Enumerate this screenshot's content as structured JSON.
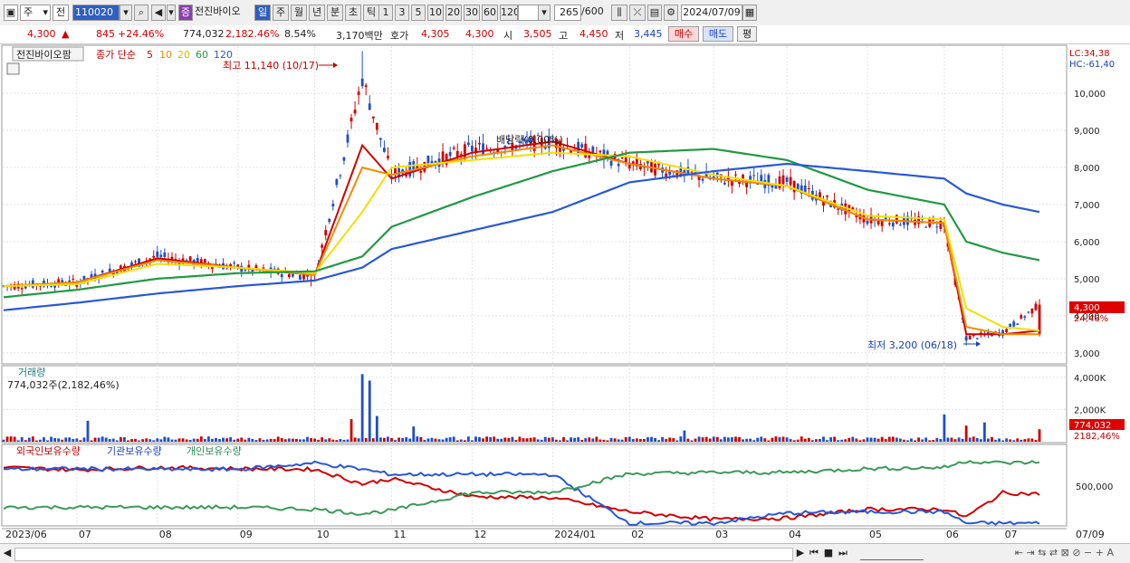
{
  "toolbar": {
    "market_type": "주",
    "exchange": "전",
    "stock_code": "110020",
    "stock_name": "전진바이오",
    "badge": "증",
    "periods": [
      "일",
      "주",
      "월",
      "년",
      "분",
      "초",
      "틱"
    ],
    "active_period": "일",
    "intervals": [
      "1",
      "3",
      "5",
      "10",
      "20",
      "30",
      "60",
      "120"
    ],
    "count": "265",
    "count_max": "/600",
    "date": "2024/07/09"
  },
  "quote": {
    "price": "4,300",
    "arrow": "▲",
    "change": "845",
    "change_pct": "+24.46%",
    "volume": "774,032",
    "volume_pct": "2,182.46%",
    "turnover": "8.54%",
    "amount": "3,170백만",
    "ask_label": "호가",
    "ask": "4,305",
    "bid": "4,300",
    "open_label": "시",
    "open": "3,505",
    "high_label": "고",
    "high": "4,450",
    "low_label": "저",
    "low": "3,445",
    "buy_label": "매수",
    "sell_label": "매도",
    "avg_label": "평"
  },
  "chart_header": {
    "name": "전진바이오팜",
    "legend_title": "종가 단순",
    "ma": [
      "5",
      "10",
      "20",
      "60",
      "120"
    ],
    "lc": "LC:34,38",
    "hc": "HC:-61,40",
    "high_note": "최고 11,140 (10/17)",
    "low_note": "최저 3,200 (06/18)",
    "div_note": "배당락(0.00%)",
    "price_tag": "4,300",
    "pct_tag": "24,46%"
  },
  "volume_panel": {
    "title": "거래량",
    "value": "774,032주(2,182,46%)",
    "axis": [
      "4,000K",
      "2,000K"
    ],
    "tag_value": "774,032",
    "tag_pct": "2182,46%"
  },
  "holding_panel": {
    "legend": [
      "외국인보유수량",
      "기관보유수량",
      "개인보유수량"
    ],
    "axis": [
      "500,000"
    ]
  },
  "colors": {
    "up": "#d00000",
    "down": "#1f4fc8",
    "ma5": "#d00000",
    "ma10": "#f08c00",
    "ma20": "#f0e000",
    "ma60": "#229944",
    "ma120": "#2858d8",
    "foreign": "#d00000",
    "institution": "#2858d8",
    "individual": "#3b9a5a"
  },
  "price_axis": [
    "10,000",
    "9,000",
    "8,000",
    "7,000",
    "6,000",
    "5,000",
    "4,000",
    "3,000"
  ],
  "x_axis": [
    "2023/06",
    "07",
    "08",
    "09",
    "10",
    "11",
    "12",
    "2024/01",
    "02",
    "03",
    "04",
    "05",
    "06",
    "07",
    "07/09"
  ],
  "chart_data": {
    "type": "candlestick",
    "x": [
      "2023/06",
      "07",
      "08",
      "09",
      "10",
      "10/17",
      "11",
      "12",
      "2024/01",
      "02",
      "03",
      "04",
      "05",
      "06",
      "06/18",
      "07",
      "07/09"
    ],
    "close": [
      4800,
      4900,
      5600,
      5300,
      5050,
      10400,
      7800,
      8500,
      8700,
      8100,
      7700,
      7600,
      6600,
      6500,
      3400,
      3550,
      4300
    ],
    "high_point": {
      "date": "10/17",
      "value": 11140
    },
    "low_point": {
      "date": "06/18",
      "value": 3200
    },
    "last": {
      "date": "07/09",
      "open": 3505,
      "high": 4450,
      "low": 3445,
      "close": 4300,
      "volume": 774032
    },
    "ylim": [
      2800,
      11200
    ],
    "yticks": [
      3000,
      4000,
      5000,
      6000,
      7000,
      8000,
      9000,
      10000
    ],
    "volume_ylim": [
      0,
      4500000
    ],
    "volume_yticks": [
      2000000,
      4000000
    ],
    "series": [
      {
        "name": "5",
        "values": [
          4800,
          4900,
          5550,
          5300,
          5100,
          8600,
          7700,
          8400,
          8700,
          8100,
          7700,
          7500,
          6600,
          6500,
          3500,
          3500,
          3600
        ]
      },
      {
        "name": "10",
        "values": [
          4800,
          4900,
          5500,
          5300,
          5100,
          8000,
          7800,
          8300,
          8600,
          8100,
          7700,
          7500,
          6600,
          6500,
          3700,
          3500,
          3500
        ]
      },
      {
        "name": "20",
        "values": [
          4800,
          4850,
          5400,
          5300,
          5150,
          6800,
          8000,
          8200,
          8400,
          8300,
          7800,
          7500,
          6700,
          6600,
          4200,
          3700,
          3600
        ]
      },
      {
        "name": "60",
        "values": [
          4500,
          4700,
          5000,
          5150,
          5200,
          5600,
          6400,
          7200,
          7900,
          8400,
          8500,
          8200,
          7400,
          7000,
          6000,
          5700,
          5500
        ]
      },
      {
        "name": "120",
        "values": [
          4150,
          4350,
          4600,
          4800,
          4950,
          5300,
          5800,
          6300,
          6800,
          7600,
          7900,
          8100,
          7900,
          7700,
          7300,
          7000,
          6800
        ]
      }
    ]
  }
}
